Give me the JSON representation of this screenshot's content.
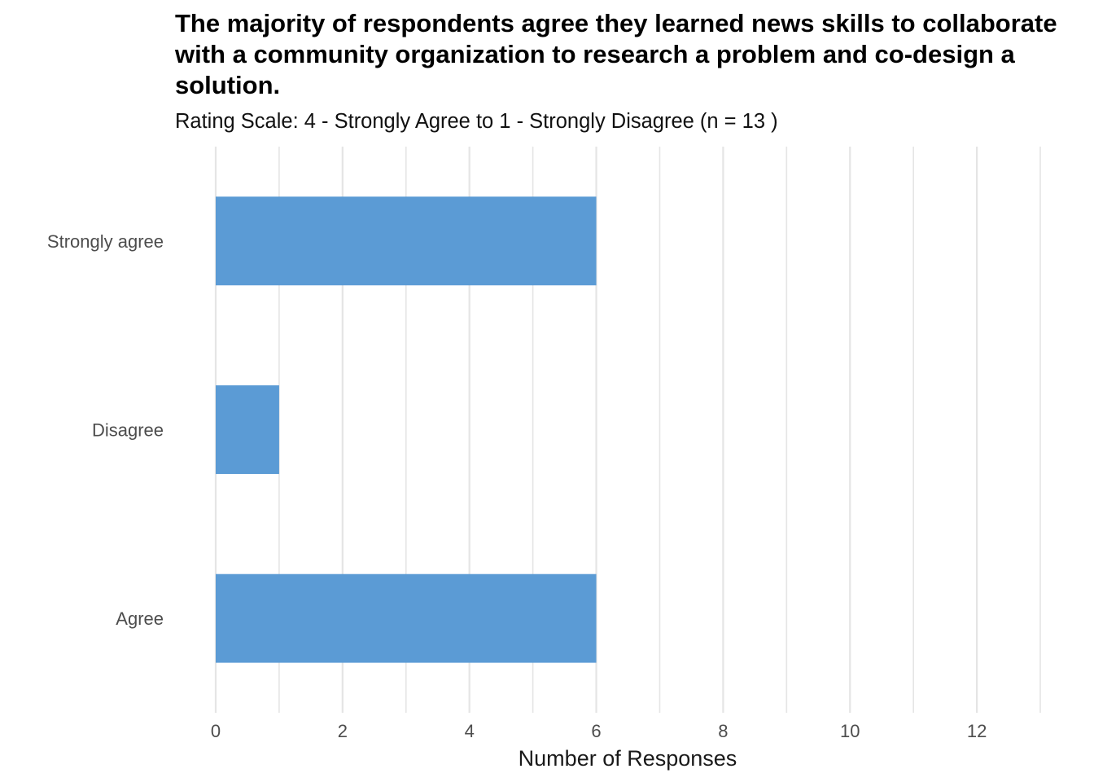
{
  "chart_data": {
    "type": "bar",
    "orientation": "horizontal",
    "title": "The majority of respondents agree they learned news skills to collaborate with a community organization to research a problem and co-design a solution.",
    "subtitle": "Rating Scale: 4 - Strongly Agree to 1 - Strongly Disagree (n = 13 )",
    "xlabel": "Number of Responses",
    "ylabel": "",
    "categories": [
      "Strongly agree",
      "Disagree",
      "Agree"
    ],
    "values": [
      6,
      1,
      6
    ],
    "xlim": [
      0,
      13
    ],
    "x_ticks": [
      0,
      2,
      4,
      6,
      8,
      10,
      12
    ],
    "grid": true,
    "legend": "none",
    "colors": {
      "bar": "#5b9bd5",
      "grid": "#e5e5e5",
      "axis_text": "#4d4d4d",
      "title": "#000000"
    }
  }
}
